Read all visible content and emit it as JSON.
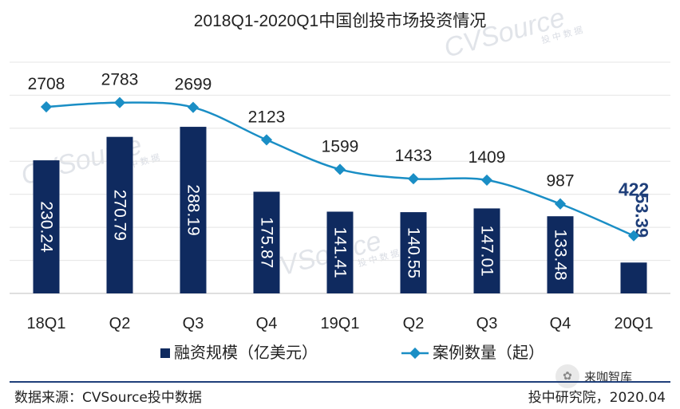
{
  "chart_data": {
    "type": "bar+line",
    "title": "2018Q1-2020Q1中国创投市场投资情况",
    "categories": [
      "18Q1",
      "Q2",
      "Q3",
      "Q4",
      "19Q1",
      "Q2",
      "Q3",
      "Q4",
      "20Q1"
    ],
    "series": [
      {
        "name": "融资规模（亿美元）",
        "type": "bar",
        "values": [
          230.24,
          270.79,
          288.19,
          175.87,
          141.41,
          140.55,
          147.01,
          133.48,
          53.39
        ],
        "labels": [
          "230.24",
          "270.79",
          "288.19",
          "175.87",
          "141.41",
          "140.55",
          "147.01",
          "133.48",
          "53.39"
        ],
        "color": "#0f2a5f",
        "ylim": [
          0,
          400
        ]
      },
      {
        "name": "案例数量（起）",
        "type": "line",
        "values": [
          2708,
          2783,
          2699,
          2123,
          1599,
          1433,
          1409,
          987,
          422
        ],
        "labels": [
          "2708",
          "2783",
          "2699",
          "2123",
          "1599",
          "1433",
          "1409",
          "987",
          "422"
        ],
        "color": "#1a8ec5",
        "ylim": [
          -600,
          3500
        ]
      }
    ],
    "legend": "bottom",
    "grid": true,
    "highlight_color": "#1f3f7a"
  },
  "watermark": "CVSource",
  "watermark_sub": "投 中 数 据",
  "footer": {
    "source": "数据来源：CVSource投中数据",
    "credit": "投中研究院，2020.04"
  },
  "wechat_badge": {
    "icon": "wechat-icon",
    "label": "来咖智库"
  }
}
